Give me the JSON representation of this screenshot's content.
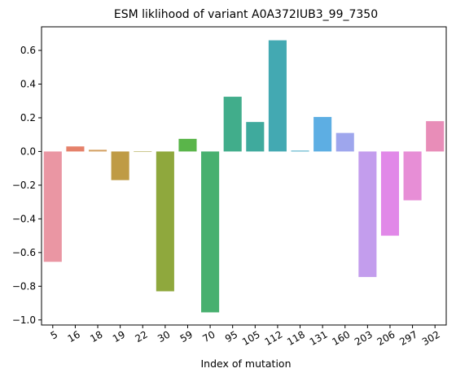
{
  "chart_data": {
    "type": "bar",
    "title": "ESM liklihood of variant A0A372IUB3_99_7350",
    "xlabel": "Index of mutation",
    "ylabel": "",
    "ylim": [
      -1.03,
      0.74
    ],
    "yticks": [
      -1.0,
      -0.8,
      -0.6,
      -0.4,
      -0.2,
      0.0,
      0.2,
      0.4,
      0.6
    ],
    "ytick_labels": [
      "−1.0",
      "−0.8",
      "−0.6",
      "−0.4",
      "−0.2",
      "0.0",
      "0.2",
      "0.4",
      "0.6"
    ],
    "grid": false,
    "legend": "none",
    "categories": [
      "5",
      "16",
      "18",
      "19",
      "22",
      "30",
      "59",
      "70",
      "95",
      "105",
      "112",
      "118",
      "131",
      "160",
      "203",
      "206",
      "297",
      "302"
    ],
    "values": [
      -0.655,
      0.03,
      0.01,
      -0.17,
      0.0,
      -0.83,
      0.075,
      -0.955,
      0.325,
      0.175,
      0.66,
      0.005,
      0.205,
      0.11,
      -0.745,
      -0.5,
      -0.29,
      0.18
    ],
    "colors": [
      "#ea96a3",
      "#e5816a",
      "#d4a063",
      "#bf9b45",
      "#a8a23d",
      "#8fa83d",
      "#5ab54a",
      "#48b06f",
      "#41ad8b",
      "#3faa9d",
      "#43a9b2",
      "#47aac4",
      "#5daee3",
      "#9ea6ed",
      "#c39ded",
      "#e188e8",
      "#e78ed6",
      "#e88db8"
    ]
  }
}
